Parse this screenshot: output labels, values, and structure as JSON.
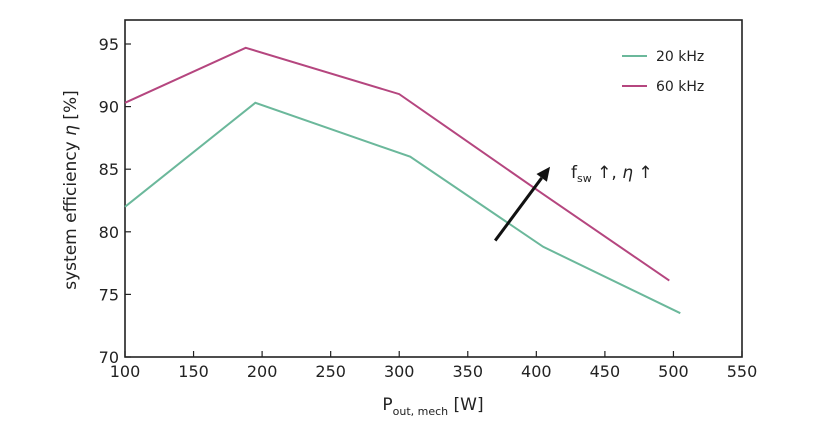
{
  "chart_data": {
    "type": "line",
    "xlabel": {
      "main": "P",
      "sub": "out, mech",
      "rest": " [W]"
    },
    "ylabel": {
      "main": "system efficiency ",
      "symbol": "η",
      "rest": " [%]"
    },
    "xlim": [
      100,
      550
    ],
    "ylim": [
      70,
      97
    ],
    "xticks": [
      100,
      150,
      200,
      250,
      300,
      350,
      400,
      450,
      500,
      550
    ],
    "yticks": [
      70,
      75,
      80,
      85,
      90,
      95
    ],
    "legend_position": "top-right",
    "series": [
      {
        "name": "20 kHz",
        "color": "#6bb89b",
        "x": [
          100,
          195,
          308,
          405,
          505
        ],
        "y": [
          82.0,
          90.3,
          86.0,
          78.8,
          73.5
        ]
      },
      {
        "name": "60 kHz",
        "color": "#b5467f",
        "x": [
          100,
          188,
          300,
          405,
          497
        ],
        "y": [
          90.3,
          94.7,
          91.0,
          83.0,
          76.1
        ]
      }
    ],
    "annotation": {
      "text_f": "f",
      "text_sub": "sw",
      "text_rest": " ↑, ",
      "text_eta": "η",
      "text_arrow": " ↑",
      "arrow_from": [
        370,
        79.3
      ],
      "arrow_to": [
        410,
        85.2
      ]
    }
  }
}
